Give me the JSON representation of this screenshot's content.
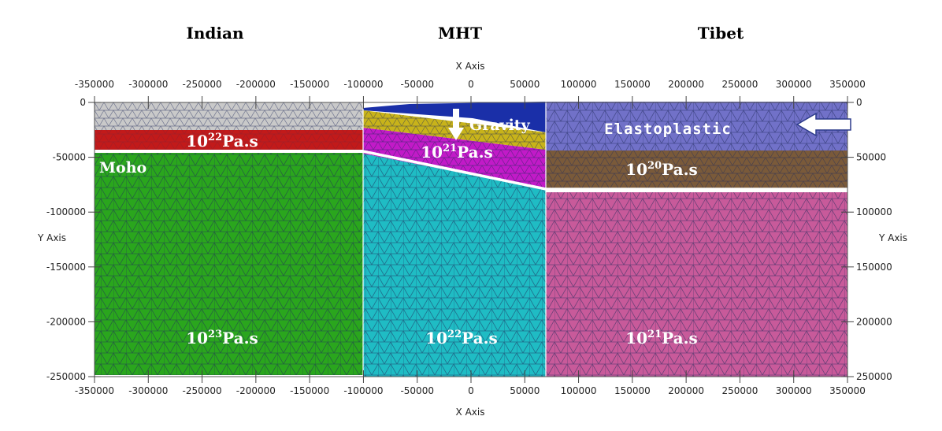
{
  "headers": {
    "left": "Indian",
    "middle": "MHT",
    "right": "Tibet"
  },
  "axes": {
    "x_title": "X Axis",
    "y_title": "Y Axis",
    "x_ticks": [
      "-350000",
      "-300000",
      "-250000",
      "-200000",
      "-150000",
      "-100000",
      "-50000",
      "0",
      "50000",
      "100000",
      "150000",
      "200000",
      "250000",
      "300000",
      "350000"
    ],
    "y_ticks_left": [
      "0",
      "-50000",
      "-100000",
      "-150000",
      "-200000",
      "-250000"
    ],
    "y_ticks_right": [
      "0",
      "50000",
      "100000",
      "150000",
      "200000",
      "250000"
    ]
  },
  "labels": {
    "moho": "Moho",
    "gravity": "Gravity",
    "elastoplastic": "Elastoplastic",
    "indian_crust": {
      "base": "10",
      "exp": "22",
      "unit": "Pa.s"
    },
    "indian_mantle": {
      "base": "10",
      "exp": "23",
      "unit": "Pa.s"
    },
    "mht_crust": {
      "base": "10",
      "exp": "21",
      "unit": "Pa.s"
    },
    "mht_mantle": {
      "base": "10",
      "exp": "22",
      "unit": "Pa.s"
    },
    "tibet_lower_crust": {
      "base": "10",
      "exp": "20",
      "unit": "Pa.s"
    },
    "tibet_mantle": {
      "base": "10",
      "exp": "21",
      "unit": "Pa.s"
    }
  },
  "colors": {
    "indian_top": "#c9c9c9",
    "indian_crust": "#c21a1a",
    "indian_mantle": "#2aa61d",
    "mht_top": "#1a2fa8",
    "mht_sediment": "#c8b31a",
    "mht_crust": "#c21ac8",
    "mht_mantle": "#1fbcc4",
    "tibet_upper": "#7171c8",
    "tibet_lower": "#7a5a3a",
    "tibet_mantle": "#c85a9a",
    "mesh": "#1e2a5a"
  }
}
